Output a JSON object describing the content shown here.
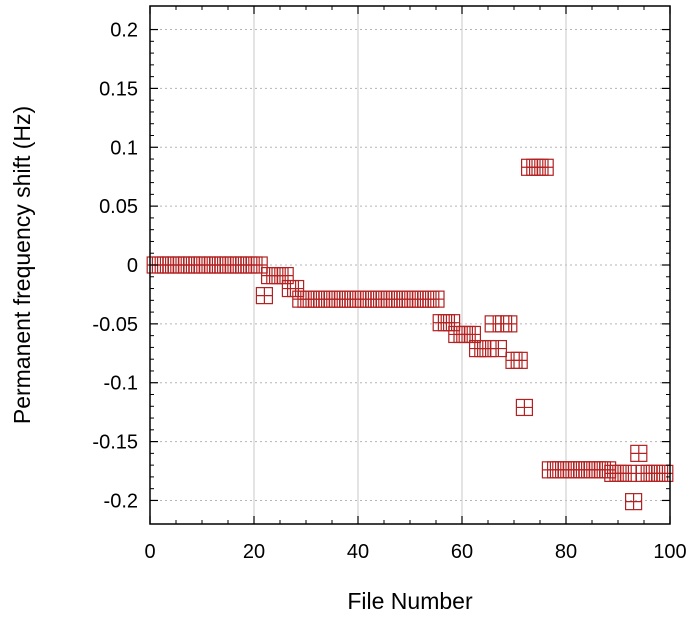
{
  "chart_data": {
    "type": "scatter",
    "title": "",
    "xlabel": "File Number",
    "ylabel": "Permanent frequency shift (Hz)",
    "xlim": [
      0,
      100
    ],
    "ylim": [
      -0.22,
      0.22
    ],
    "x_ticks": [
      0,
      20,
      40,
      60,
      80,
      100
    ],
    "x_tick_labels": [
      "0",
      "20",
      "40",
      "60",
      "80",
      "100"
    ],
    "y_ticks": [
      0.2,
      0.15,
      0.1,
      0.05,
      0,
      -0.05,
      -0.1,
      -0.15,
      -0.2
    ],
    "y_tick_labels": [
      "0.2",
      "0.15",
      "0.1",
      "0.05",
      "0",
      "-0.05",
      "-0.1",
      "-0.15",
      "-0.2"
    ],
    "grid": true,
    "marker": "boxed-plus",
    "marker_color": "#b22222",
    "series": [
      {
        "points": [
          [
            1,
            0
          ],
          [
            2,
            0
          ],
          [
            3,
            0
          ],
          [
            4,
            0
          ],
          [
            5,
            0
          ],
          [
            6,
            0
          ],
          [
            7,
            0
          ],
          [
            8,
            0
          ],
          [
            9,
            0
          ],
          [
            10,
            0
          ],
          [
            11,
            0
          ],
          [
            12,
            0
          ],
          [
            13,
            0
          ],
          [
            14,
            0
          ],
          [
            15,
            0
          ],
          [
            16,
            0
          ],
          [
            17,
            0
          ],
          [
            18,
            0
          ],
          [
            19,
            0
          ],
          [
            20,
            0
          ],
          [
            21,
            0
          ],
          [
            22,
            -0.026
          ],
          [
            23,
            -0.009
          ],
          [
            24,
            -0.009
          ],
          [
            25,
            -0.009
          ],
          [
            26,
            -0.009
          ],
          [
            27,
            -0.02
          ],
          [
            28,
            -0.02
          ],
          [
            29,
            -0.029
          ],
          [
            30,
            -0.029
          ],
          [
            31,
            -0.029
          ],
          [
            32,
            -0.029
          ],
          [
            33,
            -0.029
          ],
          [
            34,
            -0.029
          ],
          [
            35,
            -0.029
          ],
          [
            36,
            -0.029
          ],
          [
            37,
            -0.029
          ],
          [
            38,
            -0.029
          ],
          [
            39,
            -0.029
          ],
          [
            40,
            -0.029
          ],
          [
            41,
            -0.029
          ],
          [
            42,
            -0.029
          ],
          [
            43,
            -0.029
          ],
          [
            44,
            -0.029
          ],
          [
            45,
            -0.029
          ],
          [
            46,
            -0.029
          ],
          [
            47,
            -0.029
          ],
          [
            48,
            -0.029
          ],
          [
            49,
            -0.029
          ],
          [
            50,
            -0.029
          ],
          [
            51,
            -0.029
          ],
          [
            52,
            -0.029
          ],
          [
            53,
            -0.029
          ],
          [
            54,
            -0.029
          ],
          [
            55,
            -0.029
          ],
          [
            56,
            -0.049
          ],
          [
            57,
            -0.049
          ],
          [
            58,
            -0.049
          ],
          [
            59,
            -0.059
          ],
          [
            60,
            -0.059
          ],
          [
            61,
            -0.059
          ],
          [
            62,
            -0.059
          ],
          [
            63,
            -0.071
          ],
          [
            64,
            -0.071
          ],
          [
            65,
            -0.071
          ],
          [
            66,
            -0.05
          ],
          [
            67,
            -0.071
          ],
          [
            68,
            -0.05
          ],
          [
            69,
            -0.05
          ],
          [
            70,
            -0.081
          ],
          [
            71,
            -0.081
          ],
          [
            72,
            -0.121
          ],
          [
            73,
            0.083
          ],
          [
            74,
            0.083
          ],
          [
            75,
            0.083
          ],
          [
            76,
            0.083
          ],
          [
            77,
            -0.174
          ],
          [
            78,
            -0.174
          ],
          [
            79,
            -0.174
          ],
          [
            80,
            -0.174
          ],
          [
            81,
            -0.174
          ],
          [
            82,
            -0.174
          ],
          [
            83,
            -0.174
          ],
          [
            84,
            -0.174
          ],
          [
            85,
            -0.174
          ],
          [
            86,
            -0.174
          ],
          [
            87,
            -0.174
          ],
          [
            88,
            -0.174
          ],
          [
            89,
            -0.177
          ],
          [
            90,
            -0.177
          ],
          [
            91,
            -0.177
          ],
          [
            92,
            -0.177
          ],
          [
            93,
            -0.201
          ],
          [
            94,
            -0.16
          ],
          [
            95,
            -0.177
          ],
          [
            96,
            -0.177
          ],
          [
            97,
            -0.177
          ],
          [
            98,
            -0.177
          ],
          [
            99,
            -0.177
          ]
        ]
      }
    ]
  }
}
